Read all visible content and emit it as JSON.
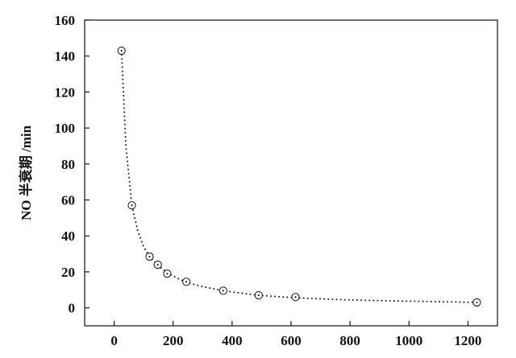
{
  "chart_data": {
    "type": "scatter",
    "title": "",
    "xlabel": "",
    "ylabel": "NO 半衰期 /min",
    "xlim": [
      -100,
      1300
    ],
    "ylim": [
      -10,
      160
    ],
    "xticks": [
      0,
      200,
      400,
      600,
      800,
      1000,
      1200
    ],
    "yticks": [
      0,
      20,
      40,
      60,
      80,
      100,
      120,
      140,
      160
    ],
    "grid": false,
    "legend": "none",
    "series": [
      {
        "marker": "circle-dot",
        "line_style": "dotted-fit",
        "x": [
          25,
          60,
          120,
          148,
          180,
          245,
          370,
          490,
          615,
          1230
        ],
        "y": [
          143,
          57,
          28.5,
          24,
          19,
          14.5,
          9.5,
          7,
          6,
          3
        ]
      }
    ],
    "fit_curve": {
      "style": "dotted",
      "x": [
        25,
        40,
        60,
        80,
        100,
        120,
        150,
        180,
        220,
        260,
        300,
        370,
        430,
        490,
        550,
        615,
        700,
        800,
        900,
        1000,
        1100,
        1230
      ],
      "y": [
        143,
        90,
        57,
        43,
        34,
        28.5,
        23.5,
        19.5,
        16,
        13.5,
        11.8,
        9.5,
        8.2,
        7.0,
        6.3,
        5.6,
        5.0,
        4.4,
        4.0,
        3.7,
        3.4,
        3.0
      ]
    },
    "colors": {
      "marker": "#222222",
      "axis": "#111111",
      "text": "#111111"
    }
  }
}
